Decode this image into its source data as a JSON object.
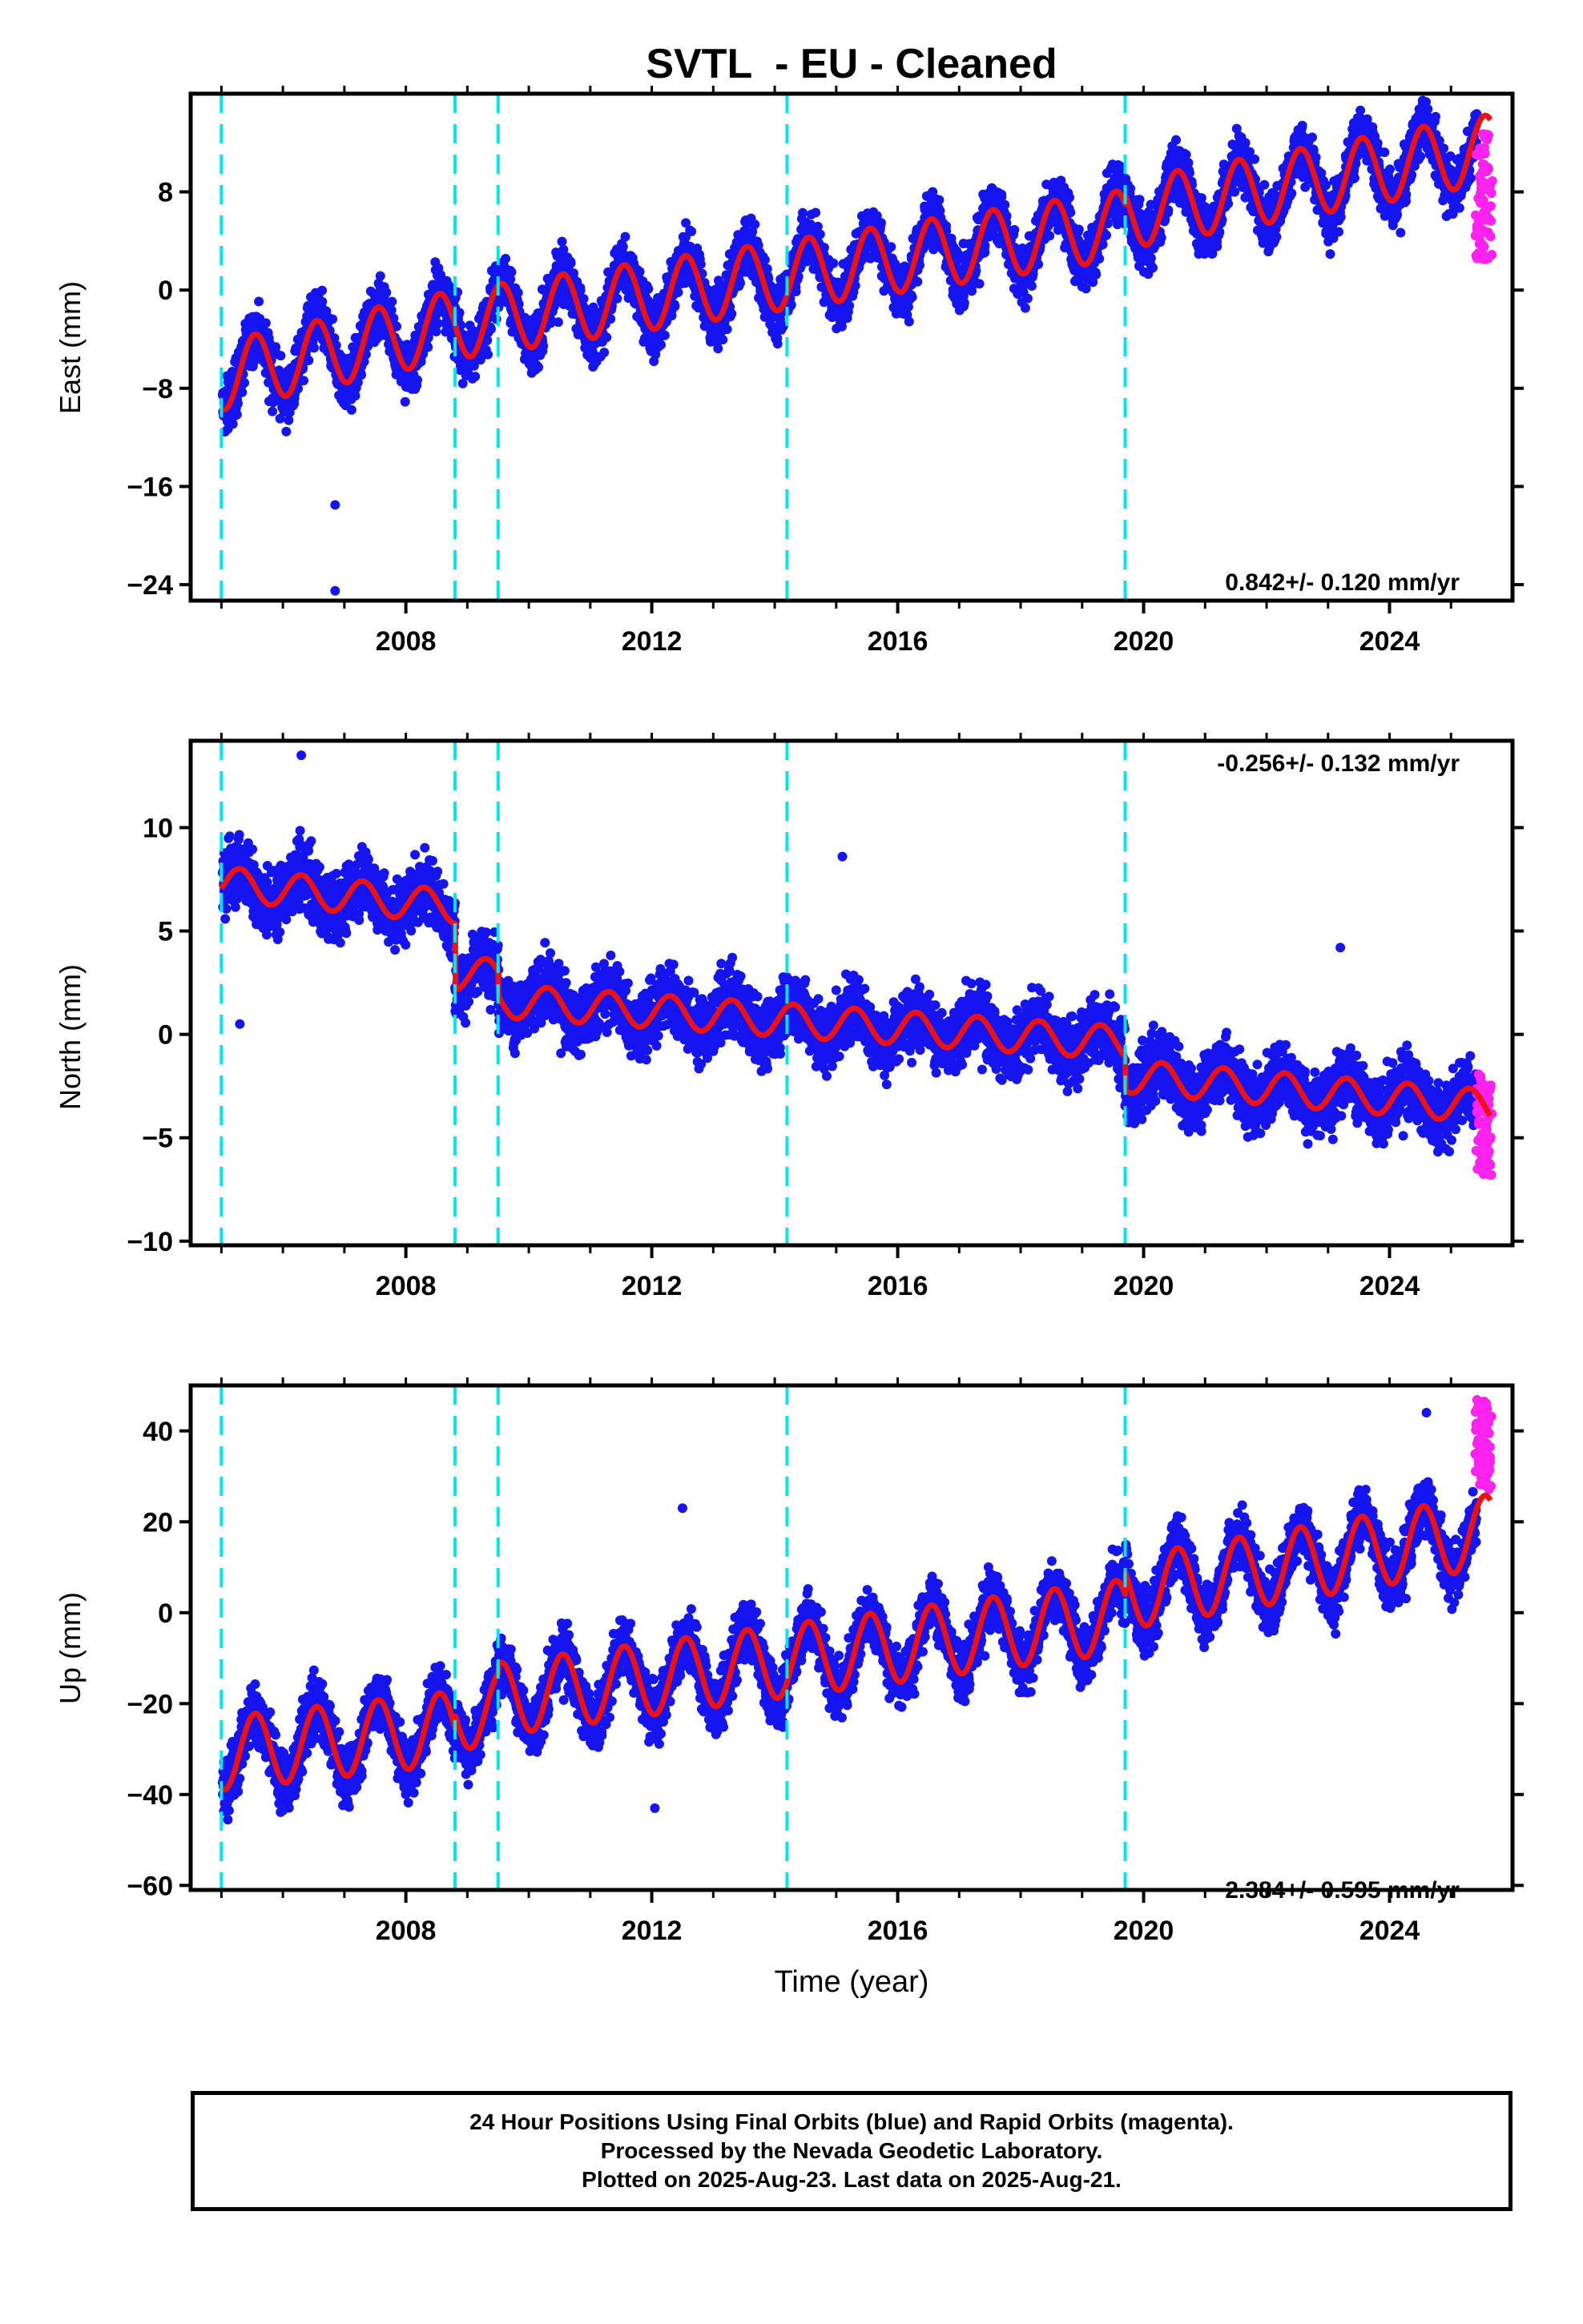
{
  "title": "SVTL  - EU - Cleaned",
  "xlabel": "Time (year)",
  "caption": {
    "line1": "24 Hour Positions Using Final Orbits (blue) and Rapid Orbits (magenta).",
    "line2": "Processed by the Nevada Geodetic Laboratory.",
    "line3": "Plotted on 2025-Aug-23. Last data on 2025-Aug-21."
  },
  "colors": {
    "final_orbits": "#1515f0",
    "rapid_orbits": "#ff22ee",
    "model_fit": "#ee1111",
    "steps": "#00e5ee"
  },
  "chart_data": [
    {
      "type": "scatter",
      "component": "east",
      "ylabel": "East (mm)",
      "rate_label": "0.842+/- 0.120 mm/yr",
      "xlim": [
        2004.5,
        2026.0
      ],
      "ylim": [
        -25.3,
        16.0
      ],
      "yticks": [
        -24,
        -16,
        -8,
        0,
        8
      ],
      "xticks": [
        2008,
        2012,
        2016,
        2020,
        2024
      ],
      "step_epochs": [
        2005.0,
        2008.8,
        2009.5,
        2014.2,
        2019.7
      ],
      "model": {
        "intercept_2005": -7.0,
        "annual_amplitude": 2.8,
        "peak_phase": 0.55,
        "rate_segments": [
          {
            "start": 2005.0,
            "end": 2008.8,
            "rate": 1.1
          },
          {
            "start": 2008.8,
            "end": 2019.7,
            "rate": 0.75
          },
          {
            "start": 2019.7,
            "end": 2025.7,
            "rate": 0.9
          }
        ],
        "offsets": [
          {
            "epoch": 2019.7,
            "value": 0.8
          }
        ]
      },
      "scatter": 1.6,
      "outliers": [
        {
          "x": 2006.85,
          "y": -17.5
        },
        {
          "x": 2006.85,
          "y": -24.5
        }
      ],
      "rapid_range": {
        "start": 2025.42,
        "end": 2025.64,
        "ymin": 2.5,
        "ymax": 13.0
      }
    },
    {
      "type": "scatter",
      "component": "north",
      "ylabel": "North (mm)",
      "rate_label": "-0.256+/- 0.132 mm/yr",
      "xlim": [
        2004.5,
        2026.0
      ],
      "ylim": [
        -10.2,
        14.2
      ],
      "yticks": [
        -10,
        -5,
        0,
        5,
        10
      ],
      "xticks": [
        2008,
        2012,
        2016,
        2020,
        2024
      ],
      "step_epochs": [
        2005.0,
        2008.8,
        2009.5,
        2014.2,
        2019.7
      ],
      "model": {
        "intercept_2005": 7.3,
        "annual_amplitude": 0.8,
        "peak_phase": 0.3,
        "rate_segments": [
          {
            "start": 2005.0,
            "end": 2008.8,
            "rate": -0.3
          },
          {
            "start": 2008.8,
            "end": 2019.7,
            "rate": -0.2
          },
          {
            "start": 2019.7,
            "end": 2025.7,
            "rate": -0.25
          }
        ],
        "offsets": [
          {
            "epoch": 2008.8,
            "value": -3.2
          },
          {
            "epoch": 2009.5,
            "value": -1.2
          },
          {
            "epoch": 2019.7,
            "value": -1.6
          }
        ]
      },
      "scatter": 1.1,
      "outliers": [
        {
          "x": 2005.3,
          "y": 0.5
        },
        {
          "x": 2006.3,
          "y": 13.5
        },
        {
          "x": 2015.1,
          "y": 8.6
        },
        {
          "x": 2023.2,
          "y": 4.2
        }
      ],
      "rapid_range": {
        "start": 2025.42,
        "end": 2025.64,
        "ymin": -6.8,
        "ymax": -1.8
      }
    },
    {
      "type": "scatter",
      "component": "up",
      "ylabel": "Up (mm)",
      "rate_label": "2.384+/- 0.595 mm/yr",
      "xlim": [
        2004.5,
        2026.0
      ],
      "ylim": [
        -61.0,
        50.0
      ],
      "yticks": [
        -60,
        -40,
        -20,
        0,
        20,
        40
      ],
      "xticks": [
        2008,
        2012,
        2016,
        2020,
        2024
      ],
      "step_epochs": [
        2005.0,
        2008.8,
        2009.5,
        2014.2,
        2019.7
      ],
      "model": {
        "intercept_2005": -31.0,
        "annual_amplitude": 8.0,
        "peak_phase": 0.55,
        "rate_segments": [
          {
            "start": 2005.0,
            "end": 2008.8,
            "rate": 1.5
          },
          {
            "start": 2008.8,
            "end": 2019.7,
            "rate": 1.8
          },
          {
            "start": 2019.7,
            "end": 2025.7,
            "rate": 2.3
          }
        ],
        "offsets": [
          {
            "epoch": 2008.8,
            "value": 3.0
          },
          {
            "epoch": 2009.5,
            "value": 2.0
          },
          {
            "epoch": 2019.7,
            "value": 5.0
          }
        ]
      },
      "scatter": 4.5,
      "outliers": [
        {
          "x": 2012.05,
          "y": -43.0
        },
        {
          "x": 2012.5,
          "y": 23.0
        },
        {
          "x": 2024.6,
          "y": 44.0
        }
      ],
      "rapid_range": {
        "start": 2025.42,
        "end": 2025.64,
        "ymin": 27.0,
        "ymax": 47.0
      }
    }
  ]
}
